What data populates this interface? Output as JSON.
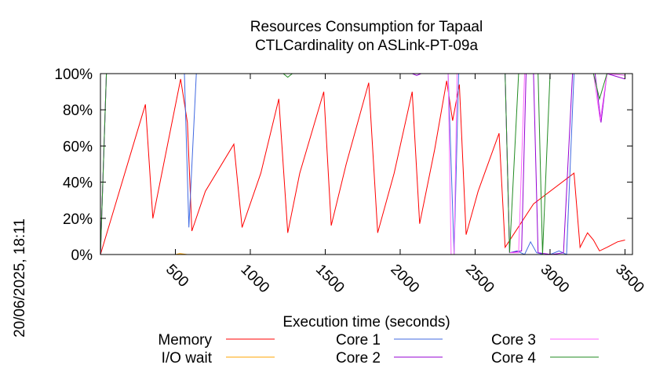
{
  "chart_data": {
    "type": "line",
    "title_line1": "Resources Consumption for Tapaal",
    "title_line2": "CTLCardinality on ASLink-PT-09a",
    "xlabel": "Execution time (seconds)",
    "ylabel": "",
    "side_stamp": "20/06/2025, 18:11",
    "xlim": [
      0,
      3550
    ],
    "ylim": [
      0,
      100
    ],
    "x_ticks": [
      500,
      1000,
      1500,
      2000,
      2500,
      3000,
      3500
    ],
    "y_ticks": [
      0,
      20,
      40,
      60,
      80,
      100
    ],
    "y_tick_labels": [
      "0%",
      "20%",
      "40%",
      "60%",
      "80%",
      "100%"
    ],
    "x_tick_labels": [
      "500",
      "1000",
      "1500",
      "2000",
      "2500",
      "3000",
      "3500"
    ],
    "legend_placement": "bottom",
    "series": [
      {
        "name": "Memory",
        "color": "#ff0000",
        "points": [
          [
            0,
            0
          ],
          [
            300,
            83
          ],
          [
            350,
            20
          ],
          [
            535,
            97
          ],
          [
            580,
            73
          ],
          [
            610,
            13
          ],
          [
            700,
            35
          ],
          [
            890,
            61
          ],
          [
            945,
            15
          ],
          [
            1070,
            45
          ],
          [
            1190,
            86
          ],
          [
            1250,
            12
          ],
          [
            1330,
            45
          ],
          [
            1490,
            90
          ],
          [
            1540,
            16
          ],
          [
            1640,
            50
          ],
          [
            1790,
            95
          ],
          [
            1850,
            12
          ],
          [
            1960,
            45
          ],
          [
            2080,
            90
          ],
          [
            2130,
            17
          ],
          [
            2230,
            58
          ],
          [
            2310,
            96
          ],
          [
            2350,
            74
          ],
          [
            2395,
            94
          ],
          [
            2440,
            11
          ],
          [
            2520,
            35
          ],
          [
            2660,
            67
          ],
          [
            2700,
            4
          ],
          [
            2890,
            28
          ],
          [
            3160,
            45
          ],
          [
            3200,
            4
          ],
          [
            3250,
            12
          ],
          [
            3290,
            8
          ],
          [
            3330,
            2
          ],
          [
            3380,
            4
          ],
          [
            3450,
            7
          ],
          [
            3500,
            8
          ]
        ]
      },
      {
        "name": "I/O wait",
        "color": "#ffa500",
        "points": [
          [
            0,
            0
          ],
          [
            500,
            0
          ],
          [
            530,
            0.5
          ],
          [
            580,
            0
          ],
          [
            1500,
            0
          ],
          [
            2900,
            0
          ],
          [
            3500,
            0
          ]
        ]
      },
      {
        "name": "Core 1",
        "color": "#4169e1",
        "points": [
          [
            0,
            0
          ],
          [
            40,
            100
          ],
          [
            560,
            100
          ],
          [
            590,
            15
          ],
          [
            640,
            100
          ],
          [
            2320,
            100
          ],
          [
            2360,
            0
          ],
          [
            2390,
            100
          ],
          [
            2700,
            100
          ],
          [
            2730,
            1
          ],
          [
            2780,
            2
          ],
          [
            2830,
            0
          ],
          [
            2870,
            7
          ],
          [
            2910,
            1
          ],
          [
            2960,
            0
          ],
          [
            3000,
            0
          ],
          [
            3060,
            2
          ],
          [
            3110,
            0
          ],
          [
            3160,
            100
          ],
          [
            3500,
            100
          ]
        ]
      },
      {
        "name": "Core 2",
        "color": "#9400d3",
        "points": [
          [
            0,
            0
          ],
          [
            40,
            100
          ],
          [
            1180,
            100
          ],
          [
            1240,
            100
          ],
          [
            2080,
            100
          ],
          [
            2110,
            99
          ],
          [
            2140,
            100
          ],
          [
            2200,
            100
          ],
          [
            2700,
            100
          ],
          [
            2730,
            1
          ],
          [
            2810,
            2
          ],
          [
            2840,
            100
          ],
          [
            2890,
            100
          ],
          [
            2920,
            1
          ],
          [
            3010,
            0
          ],
          [
            3090,
            1
          ],
          [
            3150,
            100
          ],
          [
            3300,
            100
          ],
          [
            3340,
            73
          ],
          [
            3380,
            100
          ],
          [
            3500,
            97
          ]
        ]
      },
      {
        "name": "Core 3",
        "color": "#ff66ff",
        "points": [
          [
            0,
            0
          ],
          [
            40,
            100
          ],
          [
            2320,
            100
          ],
          [
            2340,
            0
          ],
          [
            2360,
            0
          ],
          [
            2380,
            100
          ],
          [
            2700,
            100
          ],
          [
            2730,
            1
          ],
          [
            2790,
            1
          ],
          [
            2830,
            100
          ],
          [
            3290,
            100
          ],
          [
            3335,
            74
          ],
          [
            3380,
            100
          ],
          [
            3500,
            99
          ]
        ]
      },
      {
        "name": "Core 4",
        "color": "#228b22",
        "points": [
          [
            0,
            0
          ],
          [
            40,
            100
          ],
          [
            1220,
            100
          ],
          [
            1250,
            98
          ],
          [
            1280,
            100
          ],
          [
            2700,
            100
          ],
          [
            2730,
            1
          ],
          [
            2790,
            100
          ],
          [
            2920,
            100
          ],
          [
            2950,
            0
          ],
          [
            3000,
            100
          ],
          [
            3290,
            100
          ],
          [
            3330,
            86
          ],
          [
            3380,
            100
          ],
          [
            3500,
            100
          ]
        ]
      }
    ]
  }
}
